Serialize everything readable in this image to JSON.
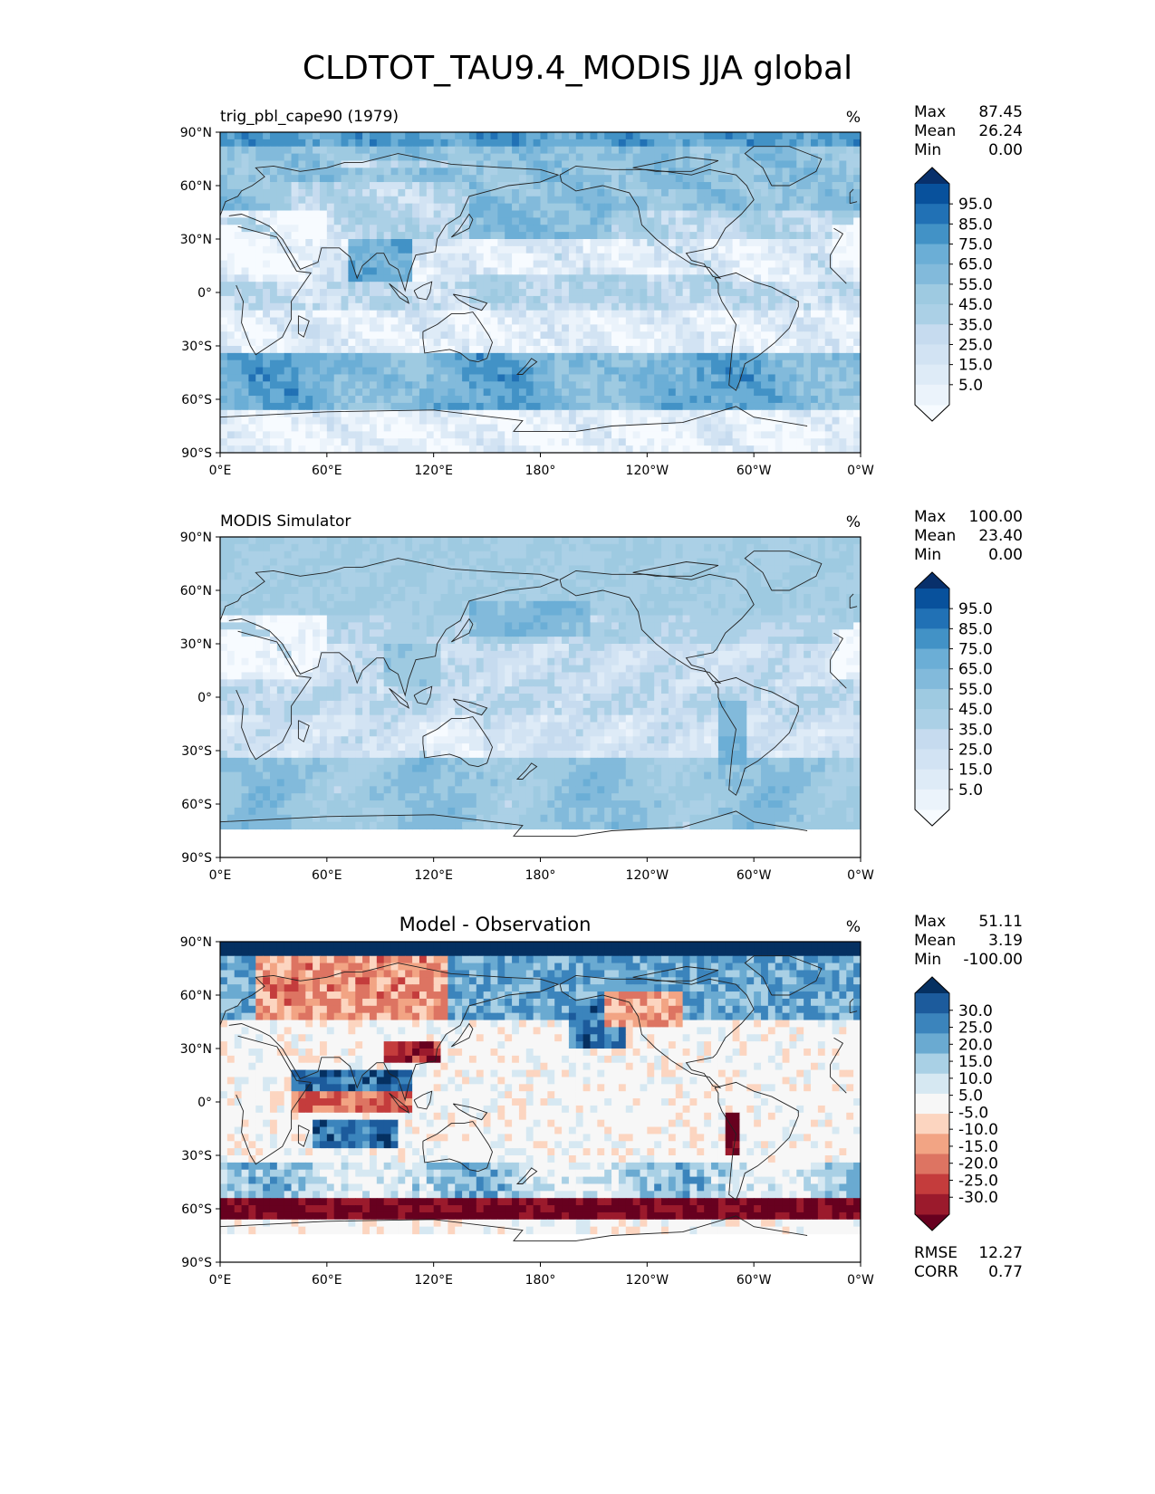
{
  "title": "CLDTOT_TAU9.4_MODIS JJA global",
  "axes": {
    "lat_ticks": [
      "90°N",
      "60°N",
      "30°N",
      "0°",
      "30°S",
      "60°S",
      "90°S"
    ],
    "lon_ticks": [
      "0°E",
      "60°E",
      "120°E",
      "180°",
      "120°W",
      "60°W",
      "0°W"
    ]
  },
  "colors": {
    "blues": [
      "#f7fbff",
      "#deebf7",
      "#c6dbef",
      "#9ecae1",
      "#6baed6",
      "#4292c6",
      "#2171b5",
      "#08519c",
      "#08306b"
    ],
    "rdbu": [
      "#67001f",
      "#b2182b",
      "#d6604d",
      "#f4a582",
      "#fddbc7",
      "#f7f7f7",
      "#d1e5f0",
      "#92c5de",
      "#4393c3",
      "#2166ac",
      "#053061"
    ]
  },
  "chart_data": [
    {
      "type": "heatmap",
      "panel": "model",
      "title": "trig_pbl_cape90 (1979)",
      "units": "%",
      "xlabel": "",
      "ylabel": "",
      "xlim": [
        0,
        360
      ],
      "ylim": [
        -90,
        90
      ],
      "stats": [
        {
          "label": "Max",
          "value": "87.45"
        },
        {
          "label": "Mean",
          "value": "26.24"
        },
        {
          "label": "Min",
          "value": "0.00"
        }
      ],
      "colorbar": {
        "levels": [
          0,
          5,
          10,
          15,
          20,
          25,
          35,
          45,
          55,
          65,
          75,
          85,
          95,
          100
        ],
        "tick_labels": [
          "95.0",
          "85.0",
          "75.0",
          "65.0",
          "55.0",
          "45.0",
          "35.0",
          "25.0",
          "15.0",
          "5.0"
        ],
        "extend": "both"
      }
    },
    {
      "type": "heatmap",
      "panel": "observation",
      "title": "MODIS Simulator",
      "units": "%",
      "xlabel": "",
      "ylabel": "",
      "xlim": [
        0,
        360
      ],
      "ylim": [
        -90,
        90
      ],
      "stats": [
        {
          "label": "Max",
          "value": "100.00"
        },
        {
          "label": "Mean",
          "value": "23.40"
        },
        {
          "label": "Min",
          "value": "0.00"
        }
      ],
      "colorbar": {
        "levels": [
          0,
          5,
          10,
          15,
          20,
          25,
          35,
          45,
          55,
          65,
          75,
          85,
          95,
          100
        ],
        "tick_labels": [
          "95.0",
          "85.0",
          "75.0",
          "65.0",
          "55.0",
          "45.0",
          "35.0",
          "25.0",
          "15.0",
          "5.0"
        ],
        "extend": "both"
      }
    },
    {
      "type": "heatmap",
      "panel": "difference",
      "title": "Model - Observation",
      "units": "%",
      "xlabel": "",
      "ylabel": "",
      "xlim": [
        0,
        360
      ],
      "ylim": [
        -90,
        90
      ],
      "stats": [
        {
          "label": "Max",
          "value": "51.11"
        },
        {
          "label": "Mean",
          "value": "3.19"
        },
        {
          "label": "Min",
          "value": "-100.00"
        }
      ],
      "metrics": [
        {
          "label": "RMSE",
          "value": "12.27"
        },
        {
          "label": "CORR",
          "value": "0.77"
        }
      ],
      "colorbar": {
        "levels": [
          -30,
          -25,
          -20,
          -15,
          -10,
          -5,
          5,
          10,
          15,
          20,
          25,
          30
        ],
        "tick_labels": [
          "30.0",
          "25.0",
          "20.0",
          "15.0",
          "10.0",
          "5.0",
          "-5.0",
          "-10.0",
          "-15.0",
          "-20.0",
          "-25.0",
          "-30.0"
        ],
        "extend": "both"
      }
    }
  ]
}
